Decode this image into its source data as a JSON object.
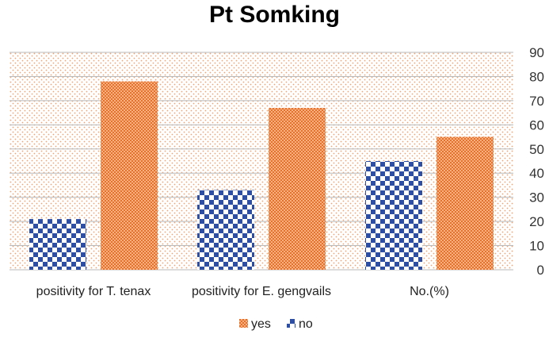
{
  "chart_data": {
    "type": "bar",
    "title": "Pt Somking",
    "categories": [
      "positivity for T. tenax",
      "positivity for E. gengvails",
      "No.(%)"
    ],
    "series": [
      {
        "name": "no",
        "values": [
          21,
          33,
          45
        ],
        "color": "#2e4ea3",
        "pattern": "checkerboard"
      },
      {
        "name": "yes",
        "values": [
          78,
          67,
          55
        ],
        "color": "#ed7d31",
        "pattern": "dotted"
      }
    ],
    "ylim": [
      0,
      90
    ],
    "yticks": [
      0,
      10,
      20,
      30,
      40,
      50,
      60,
      70,
      80,
      90
    ],
    "y_axis_side": "right",
    "grid": true,
    "plot_background": "dotted orange",
    "legend": {
      "placement": "bottom",
      "order": [
        "yes",
        "no"
      ]
    }
  }
}
